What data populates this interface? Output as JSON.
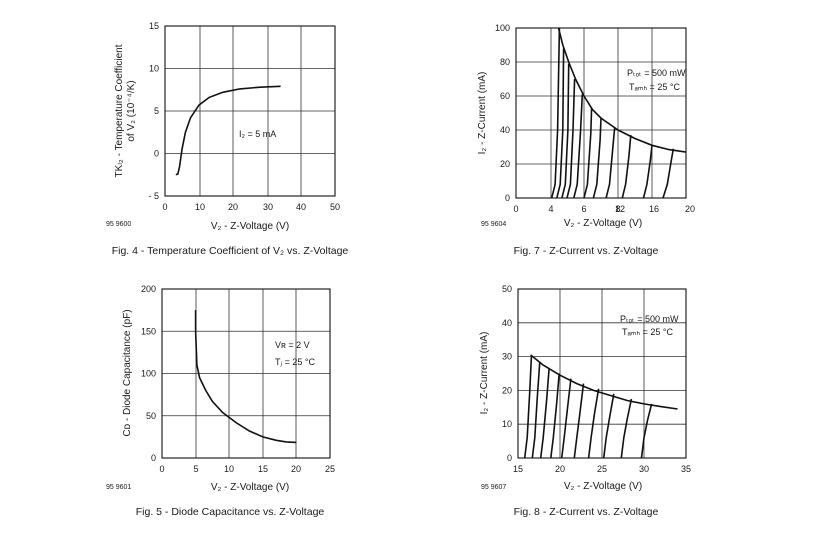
{
  "chart_data": [
    {
      "id": "fig4",
      "type": "line",
      "caption": "Fig. 4 - Temperature Coefficient of V₂ vs. Z-Voltage",
      "code": "95 9600",
      "xlabel": "V₂ - Z-Voltage (V)",
      "ylabel_line1": "TKₗ₂ - Temperature Coefficient",
      "ylabel_line2": "of V₂ (10⁻⁴/K)",
      "xlim": [
        0,
        50
      ],
      "ylim": [
        -5,
        15
      ],
      "xticks": [
        "0",
        "10",
        "20",
        "30",
        "40",
        "50"
      ],
      "yticks": [
        "- 5",
        "0",
        "5",
        "10",
        "15"
      ],
      "annotations": [
        "I₂ = 5 mA"
      ],
      "series": [
        {
          "points": [
            [
              3.2,
              -2.5
            ],
            [
              3.8,
              -2.4
            ],
            [
              4.3,
              -1.5
            ],
            [
              5,
              0.5
            ],
            [
              6,
              2.5
            ],
            [
              7.5,
              4.2
            ],
            [
              10,
              5.7
            ],
            [
              13,
              6.6
            ],
            [
              17,
              7.2
            ],
            [
              22,
              7.6
            ],
            [
              28,
              7.8
            ],
            [
              34,
              7.9
            ]
          ]
        }
      ]
    },
    {
      "id": "fig7",
      "type": "line",
      "caption": "Fig. 7 - Z-Current vs. Z-Voltage",
      "code": "95 9604",
      "xlabel": "V₂ - Z-Voltage (V)",
      "ylabel": "I₂ - Z-Current (mA)",
      "xlim": [
        0,
        20
      ],
      "ylim": [
        0,
        100
      ],
      "xticks": [
        "0",
        "4",
        "6",
        "8",
        "12",
        "16",
        "20"
      ],
      "yticks": [
        "0",
        "20",
        "40",
        "60",
        "80",
        "100"
      ],
      "annotations": [
        "Pₜₒₜ = 500 mW",
        "Tₐₘₕ = 25 °C"
      ],
      "series": [
        {
          "points": [
            [
              5,
              100
            ],
            [
              5.5,
              90
            ],
            [
              6.2,
              80
            ],
            [
              7,
              70
            ],
            [
              8,
              60
            ],
            [
              9,
              52
            ],
            [
              10,
              47
            ],
            [
              12,
              40
            ],
            [
              14,
              35
            ],
            [
              16,
              31
            ],
            [
              18,
              28.5
            ],
            [
              20,
              27
            ]
          ]
        },
        {
          "points": [
            [
              4.2,
              0
            ],
            [
              4.6,
              8
            ],
            [
              4.9,
              40
            ],
            [
              5.1,
              100
            ]
          ]
        },
        {
          "points": [
            [
              4.8,
              0
            ],
            [
              5.2,
              8
            ],
            [
              5.5,
              40
            ],
            [
              5.6,
              88
            ]
          ]
        },
        {
          "points": [
            [
              5.4,
              0
            ],
            [
              5.8,
              8
            ],
            [
              6.1,
              40
            ],
            [
              6.2,
              79
            ]
          ]
        },
        {
          "points": [
            [
              6,
              0
            ],
            [
              6.4,
              8
            ],
            [
              6.7,
              40
            ],
            [
              6.9,
              70
            ]
          ]
        },
        {
          "points": [
            [
              6.8,
              0
            ],
            [
              7.2,
              8
            ],
            [
              7.6,
              40
            ],
            [
              7.8,
              61
            ]
          ]
        },
        {
          "points": [
            [
              8,
              0
            ],
            [
              8.4,
              8
            ],
            [
              8.8,
              38
            ],
            [
              8.9,
              53
            ]
          ]
        },
        {
          "points": [
            [
              9.1,
              0
            ],
            [
              9.5,
              8
            ],
            [
              9.9,
              34
            ],
            [
              10,
              47
            ]
          ]
        },
        {
          "points": [
            [
              10.6,
              0
            ],
            [
              11,
              8
            ],
            [
              11.4,
              30
            ],
            [
              11.6,
              41
            ]
          ]
        },
        {
          "points": [
            [
              12.5,
              0
            ],
            [
              12.9,
              8
            ],
            [
              13.3,
              25
            ],
            [
              13.5,
              37
            ]
          ]
        },
        {
          "points": [
            [
              15,
              0
            ],
            [
              15.4,
              8
            ],
            [
              15.8,
              22
            ],
            [
              16,
              31
            ]
          ]
        },
        {
          "points": [
            [
              17.3,
              0
            ],
            [
              17.8,
              8
            ],
            [
              18.2,
              20
            ],
            [
              18.5,
              29
            ]
          ]
        }
      ]
    },
    {
      "id": "fig5",
      "type": "line",
      "caption": "Fig. 5 - Diode Capacitance vs. Z-Voltage",
      "code": "95 9601",
      "xlabel": "V₂ - Z-Voltage (V)",
      "ylabel": "Cᴅ - Diode Capacitance (pF)",
      "xlim": [
        0,
        25
      ],
      "ylim": [
        0,
        200
      ],
      "xticks": [
        "0",
        "5",
        "10",
        "15",
        "20",
        "25"
      ],
      "yticks": [
        "0",
        "50",
        "100",
        "150",
        "200"
      ],
      "annotations": [
        "Vʀ = 2 V",
        "Tⱼ = 25 °C"
      ],
      "series": [
        {
          "points": [
            [
              5,
              175
            ],
            [
              5,
              150
            ],
            [
              5.2,
              110
            ],
            [
              5.6,
              95
            ],
            [
              6.5,
              80
            ],
            [
              7.5,
              67
            ],
            [
              9,
              54
            ],
            [
              11,
              42
            ],
            [
              13,
              32
            ],
            [
              15,
              25
            ],
            [
              17,
              21
            ],
            [
              18.5,
              19
            ],
            [
              20,
              18.5
            ]
          ]
        }
      ]
    },
    {
      "id": "fig8",
      "type": "line",
      "caption": "Fig. 8 - Z-Current vs. Z-Voltage",
      "code": "95 9607",
      "xlabel": "V₂ - Z-Voltage (V)",
      "ylabel": "I₂ - Z-Current (mA)",
      "xlim": [
        15,
        35
      ],
      "ylim": [
        0,
        50
      ],
      "xticks": [
        "15",
        "20",
        "25",
        "30",
        "35"
      ],
      "yticks": [
        "0",
        "10",
        "20",
        "30",
        "40",
        "50"
      ],
      "annotations": [
        "Pₜₒₜ = 500 mW",
        "Tₐₘₕ = 25 °C"
      ],
      "series": [
        {
          "points": [
            [
              16.5,
              30.5
            ],
            [
              18,
              27.5
            ],
            [
              20,
              24.5
            ],
            [
              22,
              22
            ],
            [
              24,
              20
            ],
            [
              26,
              18.5
            ],
            [
              28,
              17
            ],
            [
              30,
              16
            ],
            [
              32,
              15.2
            ],
            [
              34,
              14.5
            ]
          ]
        },
        {
          "points": [
            [
              15.8,
              0
            ],
            [
              16.1,
              6
            ],
            [
              16.4,
              20
            ],
            [
              16.6,
              30
            ]
          ]
        },
        {
          "points": [
            [
              16.7,
              0
            ],
            [
              17,
              6
            ],
            [
              17.3,
              18
            ],
            [
              17.6,
              28.5
            ]
          ]
        },
        {
          "points": [
            [
              17.7,
              0
            ],
            [
              18,
              6
            ],
            [
              18.4,
              17
            ],
            [
              18.7,
              26.5
            ]
          ]
        },
        {
          "points": [
            [
              18.9,
              0
            ],
            [
              19.2,
              6
            ],
            [
              19.6,
              16
            ],
            [
              19.9,
              25
            ]
          ]
        },
        {
          "points": [
            [
              20.2,
              0
            ],
            [
              20.5,
              6
            ],
            [
              20.9,
              15
            ],
            [
              21.3,
              23.5
            ]
          ]
        },
        {
          "points": [
            [
              21.7,
              0
            ],
            [
              22,
              6
            ],
            [
              22.4,
              14
            ],
            [
              22.8,
              22
            ]
          ]
        },
        {
          "points": [
            [
              23.4,
              0
            ],
            [
              23.7,
              6
            ],
            [
              24.1,
              13
            ],
            [
              24.6,
              20.5
            ]
          ]
        },
        {
          "points": [
            [
              25.2,
              0
            ],
            [
              25.5,
              6
            ],
            [
              25.9,
              12
            ],
            [
              26.4,
              19
            ]
          ]
        },
        {
          "points": [
            [
              27.3,
              0
            ],
            [
              27.6,
              6
            ],
            [
              28,
              11.5
            ],
            [
              28.5,
              17.5
            ]
          ]
        },
        {
          "points": [
            [
              29.7,
              0
            ],
            [
              30,
              6
            ],
            [
              30.4,
              11
            ],
            [
              30.9,
              16
            ]
          ]
        }
      ]
    }
  ]
}
